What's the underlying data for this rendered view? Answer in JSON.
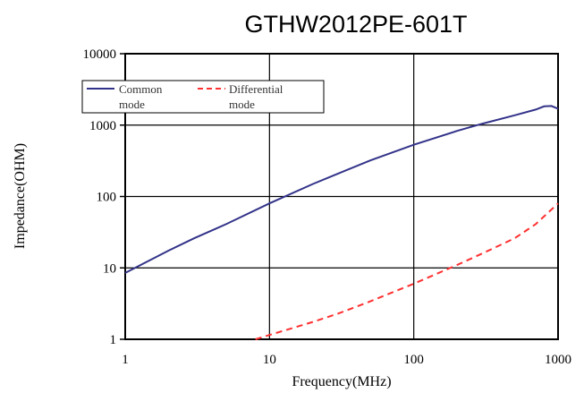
{
  "chart_data": {
    "type": "line",
    "title": "GTHW2012PE-601T",
    "xlabel": "Frequency(MHz)",
    "ylabel": "Impedance(OHM)",
    "xscale": "log",
    "yscale": "log",
    "xlim": [
      1,
      1000
    ],
    "ylim": [
      1,
      10000
    ],
    "x_ticks": [
      "1",
      "10",
      "100",
      "1000"
    ],
    "y_ticks": [
      "1",
      "10",
      "100",
      "1000",
      "10000"
    ],
    "grid": true,
    "legend": "top-left",
    "series": [
      {
        "name": "Common mode",
        "color": "#33338a",
        "style": "solid",
        "x": [
          1,
          2,
          3,
          5,
          10,
          20,
          30,
          50,
          100,
          200,
          300,
          500,
          700,
          800,
          900,
          1000
        ],
        "y": [
          8.5,
          17.5,
          26,
          41,
          80,
          150,
          210,
          320,
          530,
          830,
          1050,
          1370,
          1650,
          1830,
          1850,
          1700
        ]
      },
      {
        "name": "Differential mode",
        "color": "#ff3030",
        "style": "dashed",
        "x": [
          8,
          10,
          20,
          30,
          50,
          100,
          200,
          300,
          500,
          700,
          1000
        ],
        "y": [
          1,
          1.15,
          1.75,
          2.3,
          3.4,
          6,
          11,
          16,
          26,
          41,
          80
        ]
      }
    ],
    "legend_labels": [
      [
        "Common",
        "mode"
      ],
      [
        "Differential",
        "mode"
      ]
    ]
  }
}
